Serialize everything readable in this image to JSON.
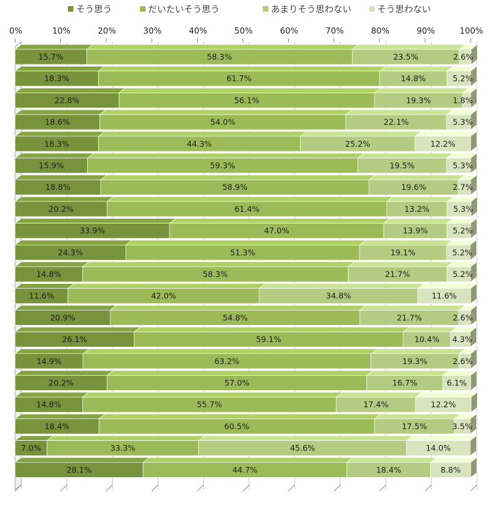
{
  "chart_data": {
    "type": "bar",
    "orientation": "horizontal",
    "stacked": true,
    "percent_stacked": true,
    "xlim": [
      0,
      100
    ],
    "x_ticks": [
      "0%",
      "10%",
      "20%",
      "30%",
      "40%",
      "50%",
      "60%",
      "70%",
      "80%",
      "90%",
      "100%"
    ],
    "legend_position": "top",
    "grid": true,
    "series": [
      {
        "name": "そう思う",
        "color": "#77933c",
        "values": [
          15.7,
          18.3,
          22.8,
          18.6,
          18.3,
          15.9,
          18.8,
          20.2,
          33.9,
          24.3,
          14.8,
          11.6,
          20.9,
          26.1,
          14.9,
          20.2,
          14.8,
          18.4,
          7.0,
          28.1
        ],
        "labels": [
          "15.7%",
          "18.3%",
          "22.8%",
          "18.6%",
          "18.3%",
          "15.9%",
          "18.8%",
          "20.2%",
          "33.9%",
          "24.3%",
          "14.8%",
          "11.6%",
          "20.9%",
          "26.1%",
          "14.9%",
          "20.2%",
          "14.8%",
          "18.4%",
          "7.0%",
          "28.1%"
        ]
      },
      {
        "name": "だいたいそう思う",
        "color": "#9bbb59",
        "values": [
          58.3,
          61.7,
          56.1,
          54.0,
          44.3,
          59.3,
          58.9,
          61.4,
          47.0,
          51.3,
          58.3,
          42.0,
          54.8,
          59.1,
          63.2,
          57.0,
          55.7,
          60.5,
          33.3,
          44.7
        ],
        "labels": [
          "58.3%",
          "61.7%",
          "56.1%",
          "54.0%",
          "44.3%",
          "59.3%",
          "58.9%",
          "61.4%",
          "47.0%",
          "51.3%",
          "58.3%",
          "42.0%",
          "54.8%",
          "59.1%",
          "63.2%",
          "57.0%",
          "55.7%",
          "60.5%",
          "33.3%",
          "44.7%"
        ]
      },
      {
        "name": "あまりそう思わない",
        "color": "#b3cc82",
        "values": [
          23.5,
          14.8,
          19.3,
          22.1,
          25.2,
          19.5,
          19.6,
          13.2,
          13.9,
          19.1,
          21.7,
          34.8,
          21.7,
          10.4,
          19.3,
          16.7,
          17.4,
          17.5,
          45.6,
          18.4
        ],
        "labels": [
          "23.5%",
          "14.8%",
          "19.3%",
          "22.1%",
          "25.2%",
          "19.5%",
          "19.6%",
          "13.2%",
          "13.9%",
          "19.1%",
          "21.7%",
          "34.8%",
          "21.7%",
          "10.4%",
          "19.3%",
          "16.7%",
          "17.4%",
          "17.5%",
          "45.6%",
          "18.4%"
        ]
      },
      {
        "name": "そう思わない",
        "color": "#d7e4bd",
        "values": [
          2.6,
          5.2,
          1.8,
          5.3,
          12.2,
          5.3,
          2.7,
          5.3,
          5.2,
          5.2,
          5.2,
          11.6,
          2.6,
          4.3,
          2.6,
          6.1,
          12.2,
          3.5,
          14.0,
          8.8
        ],
        "labels": [
          "2.6%",
          "5.2%",
          "1.8%",
          "5.3%",
          "12.2%",
          "5.3%",
          "2.7%",
          "5.3%",
          "5.2%",
          "5.2%",
          "5.2%",
          "11.6%",
          "2.6%",
          "4.3%",
          "2.6%",
          "6.1%",
          "12.2%",
          "3.5%",
          "14.0%",
          "8.8%"
        ]
      }
    ]
  }
}
